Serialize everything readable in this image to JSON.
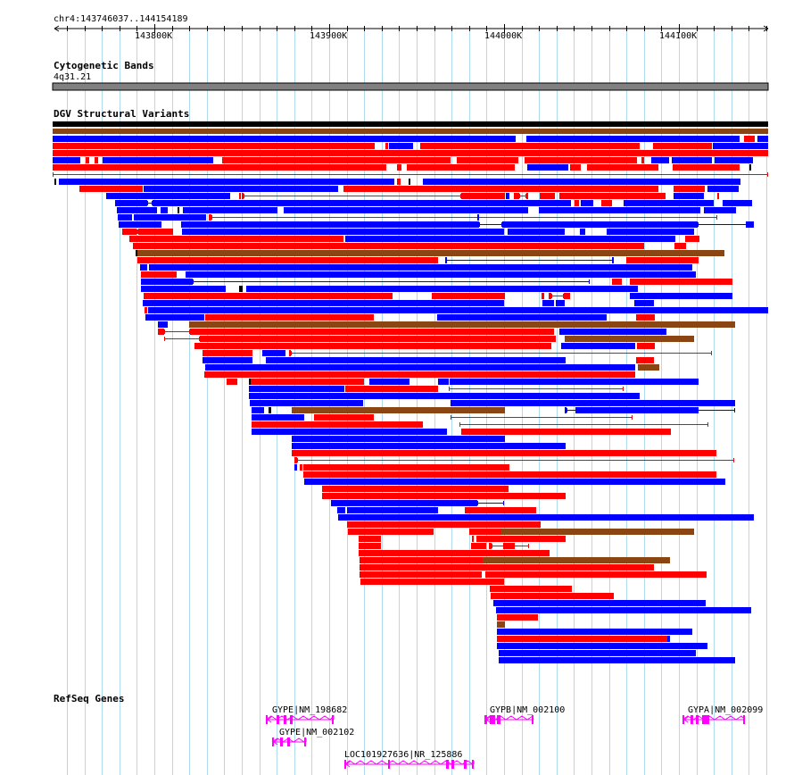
{
  "locus": "chr4:143746037..144154189",
  "ruler": {
    "ticks": [
      "143800K",
      "143900K",
      "144000K",
      "144100K"
    ]
  },
  "tracks": {
    "cytoband": {
      "title": "Cytogenetic Bands",
      "band_label": "4q31.21"
    },
    "dgv": {
      "title": "DGV Structural Variants"
    },
    "refseq": {
      "title": "RefSeq Genes",
      "genes": [
        {
          "label": "GYPE|NM_198682"
        },
        {
          "label": "GYPE|NM_002102"
        },
        {
          "label": "LOC101927636|NR_125886"
        },
        {
          "label": "GYPB|NM_002100"
        },
        {
          "label": "GYPA|NM_002099"
        }
      ]
    }
  },
  "colors": {
    "loss": "#ff0000",
    "gain": "#0000ff",
    "complex": "#8b4513",
    "other": "#000000",
    "gene": "#ff00ff",
    "grid": "#b0dcf0",
    "ideogram": "#808080"
  }
}
